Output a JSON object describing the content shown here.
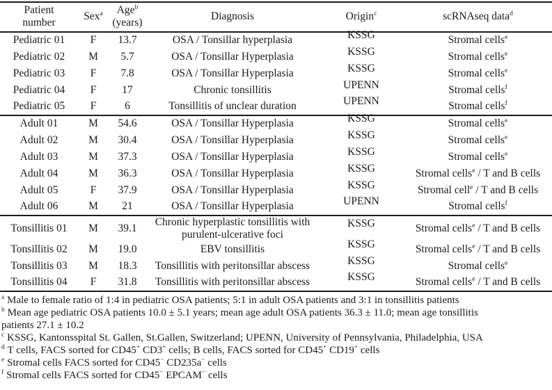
{
  "colors": {
    "text": "#1a1a1a",
    "rule": "#1a1a1a",
    "background": "#ffffff"
  },
  "table": {
    "header": {
      "patient_number": "Patient\nnumber",
      "sex": "Sex^a^",
      "age": "Age^b^\n(years)",
      "diagnosis": "Diagnosis",
      "origin": "Origin^c^",
      "scrnaseq": "scRNAseq data^d^"
    },
    "sections": [
      {
        "name": "pediatric",
        "rows": [
          {
            "patient": "Pediatric 01",
            "sex": "F",
            "age": "13.7",
            "diagnosis": "OSA / Tonsillar hyperplasia",
            "origin": "KSSG",
            "scrnaseq": "Stromal cells^e^"
          },
          {
            "patient": "Pediatric 02",
            "sex": "M",
            "age": "5.7",
            "diagnosis": "OSA / Tonsillar Hyperplasia",
            "origin": "KSSG",
            "scrnaseq": "Stromal cells^e^"
          },
          {
            "patient": "Pediatric 03",
            "sex": "F",
            "age": "7.8",
            "diagnosis": "OSA / Tonsillar Hyperplasia",
            "origin": "KSSG",
            "scrnaseq": "Stromal cells^e^"
          },
          {
            "patient": "Pediatric 04",
            "sex": "F",
            "age": "17",
            "diagnosis": "Chronic tonsillitis",
            "origin": "UPENN",
            "scrnaseq": "Stromal cells^f^"
          },
          {
            "patient": "Pediatric 05",
            "sex": "F",
            "age": "6",
            "diagnosis": "Tonsillitis of unclear duration",
            "origin": "UPENN",
            "scrnaseq": "Stromal cells^f^"
          }
        ]
      },
      {
        "name": "adult",
        "rows": [
          {
            "patient": "Adult 01",
            "sex": "M",
            "age": "54.6",
            "diagnosis": "OSA / Tonsillar Hyperplasia",
            "origin": "KSSG",
            "scrnaseq": "Stromal cells^e^"
          },
          {
            "patient": "Adult 02",
            "sex": "M",
            "age": "30.4",
            "diagnosis": "OSA / Tonsillar Hyperplasia",
            "origin": "KSSG",
            "scrnaseq": "Stromal cells^e^"
          },
          {
            "patient": "Adult 03",
            "sex": "M",
            "age": "37.3",
            "diagnosis": "OSA / Tonsillar Hyperplasia",
            "origin": "KSSG",
            "scrnaseq": "Stromal cells^e^"
          },
          {
            "patient": "Adult 04",
            "sex": "M",
            "age": "36.3",
            "diagnosis": "OSA / Tonsillar Hyperplasia",
            "origin": "KSSG",
            "scrnaseq": "Stromal cells^e^ / T and B cells"
          },
          {
            "patient": "Adult 05",
            "sex": "F",
            "age": "37.9",
            "diagnosis": "OSA / Tonsillar Hyperplasia",
            "origin": "KSSG",
            "scrnaseq": "Stromal cell^e^ / T and B cells"
          },
          {
            "patient": "Adult 06",
            "sex": "M",
            "age": "21",
            "diagnosis": "OSA / Tonsillar Hyperplasia",
            "origin": "UPENN",
            "scrnaseq": "Stromal cells^f^"
          }
        ]
      },
      {
        "name": "tonsillitis",
        "rows": [
          {
            "patient": "Tonsillitis 01",
            "sex": "M",
            "age": "39.1",
            "diagnosis": "Chronic hyperplastic tonsillitis with\npurulent-ulcerative foci",
            "origin": "KSSG",
            "scrnaseq": "Stromal cells^e^ / T and B cells"
          },
          {
            "patient": "Tonsillitis 02",
            "sex": "M",
            "age": "19.0",
            "diagnosis": "EBV tonsillitis",
            "origin": "KSSG",
            "scrnaseq": "Stromal cells^e^ / T and B cells"
          },
          {
            "patient": "Tonsillitis 03",
            "sex": "M",
            "age": "18.3",
            "diagnosis": "Tonsillitis with peritonsillar abscess",
            "origin": "KSSG",
            "scrnaseq": "Stromal cells^e^"
          },
          {
            "patient": "Tonsillitis 04",
            "sex": "F",
            "age": "31.8",
            "diagnosis": "Tonsillitis with peritonsillar abscess",
            "origin": "KSSG",
            "scrnaseq": "Stromal cells^e^ / T and B cells"
          }
        ]
      }
    ]
  },
  "footnotes": [
    {
      "marker": "a",
      "text": "Male to female ratio of 1:4 in pediatric OSA patients; 5:1 in adult OSA patients and 3:1 in tonsillitis patients"
    },
    {
      "marker": "b",
      "text": "Mean age pediatric OSA patients 10.0 ± 5.1 years; mean age adult OSA patients 36.3 ± 11.0; mean age tonsillitis\npatients 27.1 ± 10.2"
    },
    {
      "marker": "c",
      "text": "KSSG, Kantonsspital St. Gallen, St.Gallen, Switzerland; UPENN, University of Pennsylvania, Philadelphia, USA"
    },
    {
      "marker": "d",
      "text": "T cells, FACS sorted for CD45^+^ CD3^+^ cells; B cells, FACS sorted for CD45^+^ CD19^+^ cells"
    },
    {
      "marker": "e",
      "text": "Stromal cells FACS sorted for CD45^−^ CD235a^−^ cells"
    },
    {
      "marker": "f",
      "text": "Stromal cells FACS sorted for CD45^−^ EPCAM^−^ cells"
    }
  ]
}
